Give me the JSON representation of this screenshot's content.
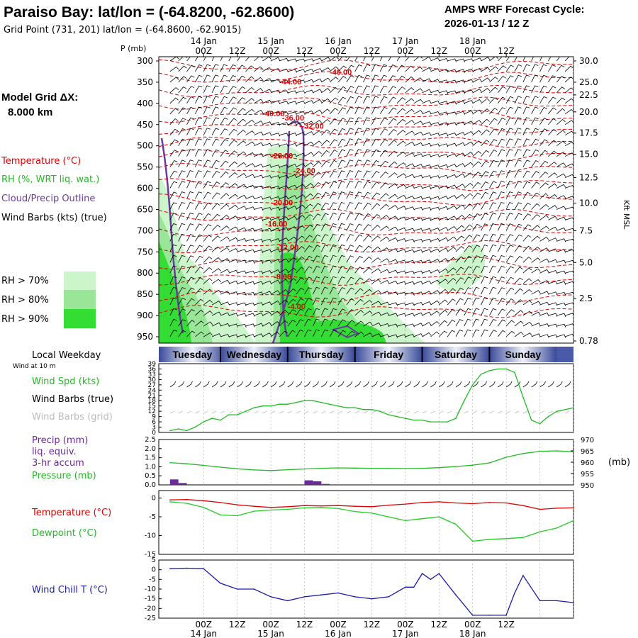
{
  "header": {
    "title": "Paraiso Bay:  lat/lon = (-64.8200, -62.8600)",
    "subtitle": "Grid Point (731, 201) lat/lon = (-64.8600, -62.9015)",
    "cycle_line1": "AMPS WRF Forecast Cycle:",
    "cycle_line2": "2026-01-13 / 12  Z"
  },
  "time_axis": {
    "hour_labels": [
      "00Z",
      "12Z",
      "00Z",
      "12Z",
      "00Z",
      "12Z",
      "00Z",
      "12Z",
      "00Z",
      "12Z"
    ],
    "date_labels": [
      "14 Jan",
      "15 Jan",
      "16 Jan",
      "17 Jan",
      "18 Jan"
    ],
    "weekdays": [
      "Tuesday",
      "Wednesday",
      "Thursday",
      "Friday",
      "Saturday",
      "Sunday"
    ]
  },
  "left_labels": {
    "p_unit": "P (mb)",
    "model_grid_line1": "Model Grid ΔX:",
    "model_grid_line2": "8.000 km",
    "temperature": "Temperature (°C)",
    "rh": "RH (%, WRT liq. wat.)",
    "cloud": "Cloud/Precip Outline",
    "wind_barbs": "Wind Barbs (kts) (true)",
    "rh70": "RH > 70%",
    "rh80": "RH > 80%",
    "rh90": "RH > 90%",
    "local_weekday": "Local Weekday",
    "wind_at": "Wind at 10 m",
    "wind_spd": "Wind Spd (kts)",
    "wind_barbs_true": "Wind Barbs (true)",
    "wind_barbs_grid": "Wind Barbs (grid)",
    "precip1": "Precip (mm)",
    "precip2": "liq. equiv.",
    "precip3": "3-hr accum",
    "pressure": "Pressure (mb)",
    "pressure_unit": "(mb)",
    "temp2": "Temperature (°C)",
    "dewpoint": "Dewpoint (°C)",
    "windchill": "Wind Chill T (°C)",
    "kft": "Kft MSL"
  },
  "colors": {
    "temperature": "#dd0000",
    "rh70": "#ccf5cc",
    "rh80": "#99e699",
    "rh90": "#33dd33",
    "cloud": "#6a3aa0",
    "wind_speed": "#22bb22",
    "pressure": "#22bb22",
    "precip": "#6a2a9a",
    "dewpoint": "#22cc22",
    "wind_chill": "#1a1aaa",
    "weekday_band": "#3a4a9a"
  },
  "chart_data": [
    {
      "type": "heatmap",
      "panel": "upper-air cross section",
      "ylabel": "P (mb)",
      "y_right_label": "Kft MSL",
      "pressure_ticks": [
        300,
        350,
        400,
        450,
        500,
        550,
        600,
        650,
        700,
        750,
        800,
        850,
        900,
        950
      ],
      "kft_ticks": [
        {
          "kft": "30.0",
          "p": 300
        },
        {
          "kft": "25.0",
          "p": 350
        },
        {
          "kft": "22.5",
          "p": 380
        },
        {
          "kft": "20.0",
          "p": 420
        },
        {
          "kft": "17.5",
          "p": 470
        },
        {
          "kft": "15.0",
          "p": 520
        },
        {
          "kft": "12.5",
          "p": 575
        },
        {
          "kft": "10.0",
          "p": 635
        },
        {
          "kft": "7.5",
          "p": 700
        },
        {
          "kft": "5.0",
          "p": 775
        },
        {
          "kft": "2.5",
          "p": 860
        },
        {
          "kft": "0.78",
          "p": 960
        }
      ],
      "temperature_labels": [
        {
          "label": "-40.00",
          "hour": 45,
          "p": 333
        },
        {
          "label": "-44.00",
          "hour": 27,
          "p": 355
        },
        {
          "label": "-40.00",
          "hour": 21,
          "p": 430
        },
        {
          "label": "-36.00",
          "hour": 28,
          "p": 440
        },
        {
          "label": "-32.00",
          "hour": 35,
          "p": 460
        },
        {
          "label": "-28.00",
          "hour": 24,
          "p": 530
        },
        {
          "label": "-24.00",
          "hour": 32,
          "p": 565
        },
        {
          "label": "-20.00",
          "hour": 24,
          "p": 640
        },
        {
          "label": "-16.00",
          "hour": 22,
          "p": 690
        },
        {
          "label": "-12.00",
          "hour": 26,
          "p": 745
        },
        {
          "label": "-8.00",
          "hour": 25,
          "p": 815
        },
        {
          "label": "-4.00",
          "hour": 30,
          "p": 885
        }
      ]
    },
    {
      "type": "line",
      "panel": "wind speed 10 m",
      "ylabel": "Wind Spd (kts)",
      "y_ticks": [
        0,
        3,
        6,
        9,
        12,
        15,
        18,
        21,
        24,
        27,
        30,
        33,
        36,
        39
      ],
      "ylim": [
        0,
        39
      ],
      "x_hours": [
        -12,
        -9,
        -6,
        -3,
        0,
        3,
        6,
        9,
        12,
        15,
        18,
        21,
        24,
        27,
        30,
        33,
        36,
        39,
        42,
        45,
        48,
        51,
        54,
        57,
        60,
        63,
        66,
        69,
        72,
        75,
        78,
        81,
        84,
        87,
        90,
        93,
        96,
        99,
        102,
        105,
        108,
        111,
        114,
        117,
        120,
        123,
        126,
        129,
        132
      ],
      "values": [
        1,
        2,
        1,
        3,
        6,
        8,
        7,
        10,
        10,
        12,
        14,
        15,
        15,
        16,
        16,
        17,
        18,
        18,
        17,
        16,
        15,
        14,
        14,
        13,
        13,
        12,
        10,
        9,
        8,
        7,
        7,
        6,
        6,
        6,
        8,
        18,
        27,
        33,
        35,
        36,
        36,
        34,
        20,
        7,
        5,
        9,
        12,
        13,
        14
      ]
    },
    {
      "type": "bar",
      "panel": "precipitation 3-hr accum",
      "ylabel": "Precip (mm)",
      "y_ticks": [
        0.0,
        0.5,
        1.0,
        1.5,
        2.0,
        2.5
      ],
      "ylim": [
        0,
        2.5
      ],
      "x_hours": [
        -12,
        -9,
        36,
        39,
        42
      ],
      "values": [
        0.3,
        0.1,
        0.25,
        0.2,
        0.05
      ]
    },
    {
      "type": "line",
      "panel": "sea level pressure",
      "ylabel": "Pressure (mb)",
      "y_ticks": [
        950,
        955,
        960,
        965,
        970
      ],
      "ylim": [
        950,
        970
      ],
      "x_hours": [
        -12,
        -6,
        0,
        6,
        12,
        18,
        24,
        30,
        36,
        42,
        48,
        54,
        60,
        66,
        72,
        78,
        84,
        90,
        96,
        102,
        108,
        114,
        120,
        126,
        132
      ],
      "values": [
        959.8,
        959.3,
        958.6,
        957.8,
        957.1,
        956.6,
        956.3,
        956.7,
        957.0,
        957.3,
        957.5,
        957.4,
        957.3,
        957.3,
        957.2,
        957.3,
        957.6,
        958.1,
        958.7,
        959.7,
        962.2,
        963.8,
        964.8,
        965.0,
        964.6
      ]
    },
    {
      "type": "line",
      "panel": "temperature and dewpoint",
      "y_ticks": [
        0,
        -5,
        -10,
        -15
      ],
      "ylim": [
        -15,
        2
      ],
      "x_hours": [
        -12,
        -6,
        0,
        6,
        12,
        18,
        24,
        30,
        36,
        42,
        48,
        54,
        60,
        66,
        72,
        78,
        84,
        90,
        96,
        102,
        108,
        114,
        120,
        126,
        132
      ],
      "series": [
        {
          "name": "Temperature (°C)",
          "values": [
            -0.5,
            -0.4,
            -0.7,
            -1.2,
            -1.8,
            -2.2,
            -2.5,
            -2.3,
            -2.0,
            -2.1,
            -2.0,
            -2.2,
            -2.3,
            -1.9,
            -1.6,
            -1.2,
            -1.0,
            -1.3,
            -1.5,
            -1.2,
            -1.3,
            -2.0,
            -3.0,
            -2.7,
            -2.6
          ]
        },
        {
          "name": "Dewpoint (°C)",
          "values": [
            -1.0,
            -1.4,
            -2.5,
            -4.5,
            -4.7,
            -3.5,
            -3.2,
            -3.0,
            -2.6,
            -2.5,
            -2.8,
            -3.6,
            -4.0,
            -5.0,
            -6.0,
            -5.5,
            -5.0,
            -7.0,
            -11.5,
            -11.0,
            -10.8,
            -10.5,
            -9.0,
            -8.0,
            -6.0
          ]
        }
      ]
    },
    {
      "type": "line",
      "panel": "wind chill",
      "ylabel": "Wind Chill T (°C)",
      "y_ticks": [
        5,
        0,
        -5,
        -10,
        -15,
        -20,
        -25
      ],
      "ylim": [
        -25,
        5
      ],
      "x_hours": [
        -12,
        -6,
        0,
        6,
        12,
        18,
        24,
        30,
        36,
        42,
        48,
        54,
        60,
        66,
        72,
        75,
        78,
        81,
        84,
        90,
        96,
        102,
        108,
        111,
        114,
        120,
        126,
        132
      ],
      "values": [
        0.5,
        0.8,
        0.5,
        -7,
        -10,
        -10,
        -14,
        -16,
        -14,
        -13,
        -12,
        -14,
        -15,
        -14,
        -9,
        -9,
        -2,
        -5,
        -2,
        -13,
        -23.5,
        -23.5,
        -23.5,
        -12,
        -3,
        -16,
        -16,
        -17
      ]
    }
  ]
}
